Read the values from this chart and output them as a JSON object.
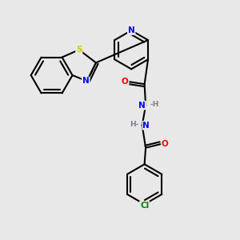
{
  "bg_color": "#e8e8e8",
  "bond_color": "#000000",
  "atom_colors": {
    "N": "#0000ff",
    "S": "#cccc00",
    "O": "#ff0000",
    "Cl": "#008000",
    "C": "#000000",
    "H": "#808080"
  }
}
